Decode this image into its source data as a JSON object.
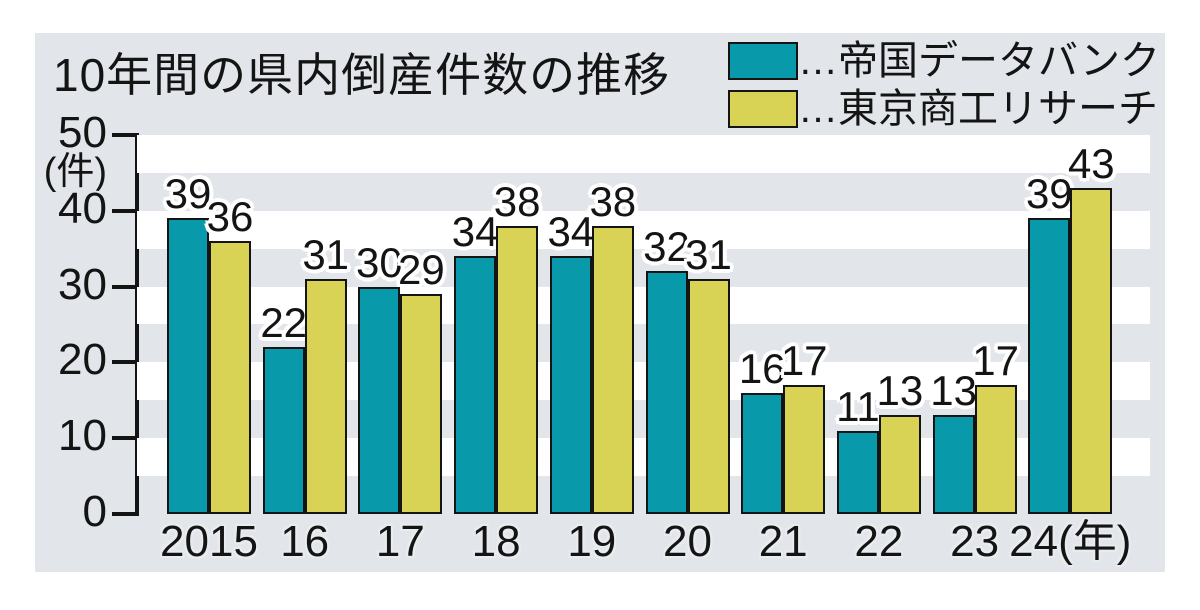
{
  "title": "10年間の県内倒産件数の推移",
  "y_axis_unit": "(件)",
  "x_axis_unit_suffix": "(年)",
  "legend": {
    "items": [
      {
        "prefix": "…",
        "label": "帝国データバンク",
        "color": "#0899ab"
      },
      {
        "prefix": "…",
        "label": "東京商工リサーチ",
        "color": "#d9d355"
      }
    ]
  },
  "colors": {
    "card_background": "#e2e6ea",
    "stripe": "#ffffff",
    "teikoku_bar": "#0899ab",
    "tsr_bar": "#d9d355",
    "bar_border": "#141414",
    "text": "#141414"
  },
  "chart_data": {
    "type": "bar",
    "title": "10年間の県内倒産件数の推移",
    "categories": [
      "2015",
      "16",
      "17",
      "18",
      "19",
      "20",
      "21",
      "22",
      "23",
      "24"
    ],
    "series": [
      {
        "name": "帝国データバンク",
        "color": "#0899ab",
        "values": [
          39,
          22,
          30,
          34,
          34,
          32,
          16,
          11,
          13,
          39
        ]
      },
      {
        "name": "東京商工リサーチ",
        "color": "#d9d355",
        "values": [
          36,
          31,
          29,
          38,
          38,
          31,
          17,
          13,
          17,
          43
        ]
      }
    ],
    "ylim": [
      0,
      50
    ],
    "yticks": [
      0,
      10,
      20,
      30,
      40,
      50
    ],
    "ylabel": "(件)",
    "xlabel_suffix": "(年)",
    "legend_position": "top-right",
    "grid": "alternating horizontal white bands every 5 units",
    "bar_value_labels": true
  }
}
